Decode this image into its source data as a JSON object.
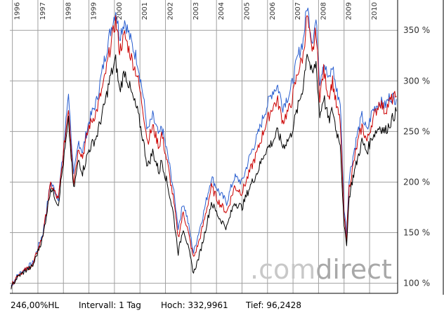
{
  "chart_data": {
    "type": "line",
    "title": "",
    "xlabel": "",
    "ylabel": "",
    "x_range": [
      1995.9,
      2011.1
    ],
    "ylim": [
      90,
      380
    ],
    "y_ticks": [
      100,
      150,
      200,
      250,
      300,
      350
    ],
    "y_tick_labels": [
      "100 %",
      "150 %",
      "200 %",
      "250 %",
      "300 %",
      "350 %"
    ],
    "x_ticks": [
      1996,
      1997,
      1998,
      1999,
      2000,
      2001,
      2002,
      2003,
      2004,
      2005,
      2006,
      2007,
      2008,
      2009,
      2010
    ],
    "x_tick_labels": [
      "1996",
      "1997",
      "1998",
      "1999",
      "2000",
      "2001",
      "2002",
      "2003",
      "2004",
      "2005",
      "2006",
      "2007",
      "2008",
      "2009",
      "2010"
    ],
    "grid": true,
    "series": [
      {
        "name": "blue",
        "color": "#2a5fd0",
        "x": [
          1995.95,
          1996.2,
          1996.5,
          1996.8,
          1997.2,
          1997.5,
          1997.8,
          1998.0,
          1998.2,
          1998.4,
          1998.6,
          1998.75,
          1999.0,
          1999.3,
          1999.6,
          1999.85,
          2000.05,
          2000.2,
          2000.4,
          2000.7,
          2000.9,
          2001.1,
          2001.3,
          2001.5,
          2001.75,
          2001.85,
          2002.1,
          2002.3,
          2002.5,
          2002.7,
          2002.85,
          2003.1,
          2003.3,
          2003.5,
          2003.8,
          2004.1,
          2004.4,
          2004.7,
          2005.0,
          2005.3,
          2005.6,
          2005.9,
          2006.2,
          2006.4,
          2006.6,
          2006.9,
          2007.2,
          2007.4,
          2007.55,
          2007.75,
          2007.9,
          2008.05,
          2008.2,
          2008.4,
          2008.55,
          2008.7,
          2008.85,
          2009.0,
          2009.1,
          2009.2,
          2009.35,
          2009.5,
          2009.7,
          2009.9,
          2010.1,
          2010.4,
          2010.6,
          2010.8,
          2011.05
        ],
        "values": [
          97,
          108,
          114,
          120,
          150,
          200,
          185,
          230,
          290,
          205,
          240,
          230,
          260,
          280,
          320,
          350,
          370,
          345,
          360,
          335,
          320,
          290,
          250,
          265,
          245,
          255,
          225,
          195,
          155,
          180,
          165,
          130,
          150,
          170,
          205,
          190,
          180,
          205,
          200,
          225,
          245,
          270,
          290,
          295,
          275,
          290,
          325,
          340,
          375,
          340,
          360,
          300,
          320,
          300,
          315,
          290,
          280,
          175,
          150,
          205,
          225,
          245,
          265,
          250,
          270,
          280,
          275,
          285,
          282
        ]
      },
      {
        "name": "red",
        "color": "#cc0000",
        "x": [
          1995.95,
          1996.2,
          1996.5,
          1996.8,
          1997.2,
          1997.5,
          1997.8,
          1998.0,
          1998.2,
          1998.4,
          1998.6,
          1998.75,
          1999.0,
          1999.3,
          1999.6,
          1999.85,
          2000.05,
          2000.2,
          2000.4,
          2000.7,
          2000.9,
          2001.1,
          2001.3,
          2001.5,
          2001.75,
          2001.85,
          2002.1,
          2002.3,
          2002.5,
          2002.7,
          2002.85,
          2003.1,
          2003.3,
          2003.5,
          2003.8,
          2004.1,
          2004.4,
          2004.7,
          2005.0,
          2005.3,
          2005.6,
          2005.9,
          2006.2,
          2006.4,
          2006.6,
          2006.9,
          2007.2,
          2007.4,
          2007.55,
          2007.75,
          2007.9,
          2008.05,
          2008.2,
          2008.4,
          2008.55,
          2008.7,
          2008.85,
          2009.0,
          2009.1,
          2009.2,
          2009.35,
          2009.5,
          2009.7,
          2009.9,
          2010.1,
          2010.4,
          2010.6,
          2010.8,
          2011.05
        ],
        "values": [
          97,
          108,
          113,
          118,
          148,
          198,
          182,
          228,
          275,
          200,
          235,
          225,
          255,
          270,
          300,
          335,
          360,
          330,
          345,
          320,
          305,
          275,
          240,
          255,
          235,
          248,
          215,
          185,
          145,
          170,
          155,
          125,
          140,
          160,
          195,
          180,
          170,
          195,
          190,
          210,
          230,
          255,
          275,
          280,
          260,
          275,
          310,
          325,
          365,
          325,
          350,
          285,
          310,
          285,
          300,
          275,
          260,
          165,
          145,
          195,
          215,
          235,
          255,
          240,
          260,
          280,
          270,
          280,
          285
        ]
      },
      {
        "name": "black",
        "color": "#000000",
        "x": [
          1995.95,
          1996.2,
          1996.5,
          1996.8,
          1997.2,
          1997.5,
          1997.8,
          1998.0,
          1998.2,
          1998.4,
          1998.6,
          1998.75,
          1999.0,
          1999.3,
          1999.6,
          1999.85,
          2000.05,
          2000.2,
          2000.4,
          2000.7,
          2000.9,
          2001.1,
          2001.3,
          2001.5,
          2001.75,
          2001.85,
          2002.1,
          2002.3,
          2002.5,
          2002.7,
          2002.85,
          2003.1,
          2003.3,
          2003.5,
          2003.8,
          2004.1,
          2004.4,
          2004.7,
          2005.0,
          2005.3,
          2005.6,
          2005.9,
          2006.2,
          2006.4,
          2006.6,
          2006.9,
          2007.2,
          2007.4,
          2007.55,
          2007.75,
          2007.9,
          2008.05,
          2008.2,
          2008.4,
          2008.55,
          2008.7,
          2008.85,
          2009.0,
          2009.1,
          2009.2,
          2009.35,
          2009.5,
          2009.7,
          2009.9,
          2010.1,
          2010.4,
          2010.6,
          2010.8,
          2011.05
        ],
        "values": [
          96,
          106,
          112,
          117,
          146,
          195,
          178,
          220,
          260,
          192,
          222,
          210,
          232,
          245,
          275,
          305,
          320,
          290,
          310,
          285,
          270,
          245,
          215,
          230,
          210,
          222,
          195,
          170,
          130,
          155,
          140,
          110,
          125,
          145,
          180,
          165,
          155,
          180,
          175,
          195,
          210,
          230,
          240,
          250,
          235,
          245,
          275,
          295,
          330,
          305,
          318,
          265,
          285,
          260,
          272,
          250,
          240,
          155,
          140,
          185,
          205,
          220,
          240,
          230,
          245,
          255,
          250,
          258,
          270
        ]
      }
    ]
  },
  "watermark": {
    "dot": ".",
    "com": "com",
    "direct": "direct"
  },
  "footer": {
    "performance": "246,00%HL",
    "interval": "Intervall: 1 Tag",
    "high": "Hoch: 332,9961",
    "low": "Tief: 96,2428"
  },
  "colors": {
    "background": "#ffffff",
    "grid": "#a0a0a0",
    "axis": "#000000",
    "watermark_com": "#c8c8c8",
    "watermark_direct": "#a8a8a8"
  }
}
